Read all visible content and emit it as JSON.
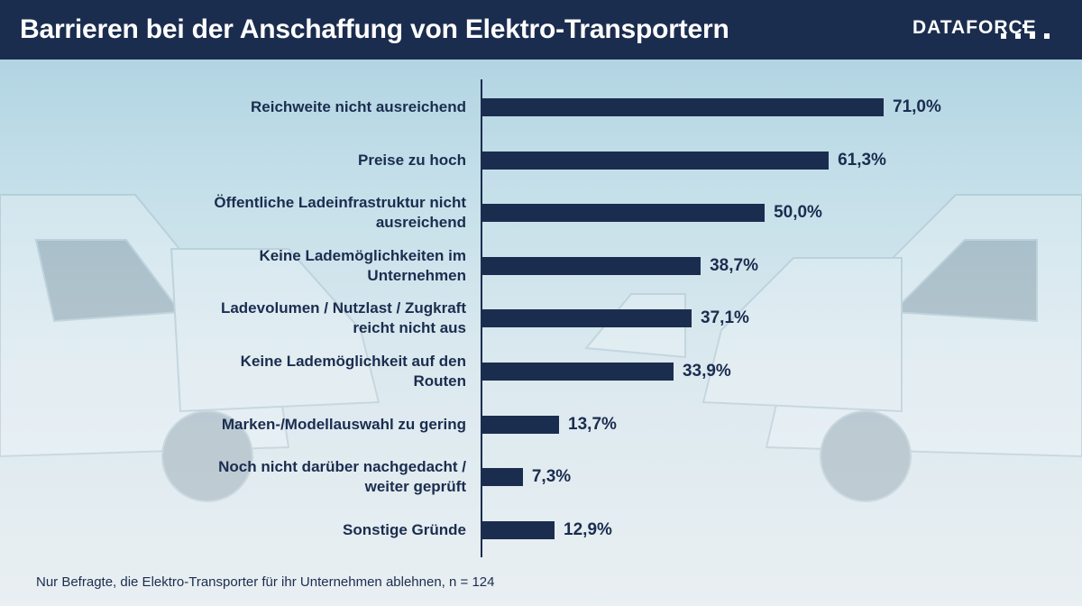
{
  "header": {
    "title": "Barrieren bei der Anschaffung von Elektro-Transportern",
    "logo_text": "DATAFORCE"
  },
  "colors": {
    "bar": "#1b2d4f",
    "header_bg": "#1b2d4f",
    "text": "#1b2d4f"
  },
  "chart_data": {
    "type": "bar",
    "orientation": "horizontal",
    "title": "Barrieren bei der Anschaffung von Elektro-Transportern",
    "categories": [
      "Reichweite nicht ausreichend",
      "Preise zu hoch",
      "Öffentliche Ladeinfrastruktur nicht ausreichend",
      "Keine Lademöglichkeiten im Unternehmen",
      "Ladevolumen / Nutzlast / Zugkraft reicht nicht aus",
      "Keine Lademöglichkeit auf den Routen",
      "Marken-/Modellauswahl zu gering",
      "Noch nicht darüber nachgedacht / weiter geprüft",
      "Sonstige Gründe"
    ],
    "category_lines": [
      [
        "Reichweite nicht ausreichend"
      ],
      [
        "Preise zu hoch"
      ],
      [
        "Öffentliche Ladeinfrastruktur nicht",
        "ausreichend"
      ],
      [
        "Keine Lademöglichkeiten im",
        "Unternehmen"
      ],
      [
        "Ladevolumen / Nutzlast / Zugkraft",
        "reicht nicht aus"
      ],
      [
        "Keine Lademöglichkeit auf den",
        "Routen"
      ],
      [
        "Marken-/Modellauswahl zu gering"
      ],
      [
        "Noch nicht darüber nachgedacht /",
        "weiter geprüft"
      ],
      [
        "Sonstige Gründe"
      ]
    ],
    "values": [
      71.0,
      61.3,
      50.0,
      38.7,
      37.1,
      33.9,
      13.7,
      7.3,
      12.9
    ],
    "value_labels": [
      "71,0%",
      "61,3%",
      "50,0%",
      "38,7%",
      "37,1%",
      "33,9%",
      "13,7%",
      "7,3%",
      "12,9%"
    ],
    "xlim": [
      0,
      100
    ],
    "xlabel": "",
    "ylabel": ""
  },
  "footnote": "Nur Befragte, die Elektro-Transporter für ihr Unternehmen ablehnen, n = 124"
}
